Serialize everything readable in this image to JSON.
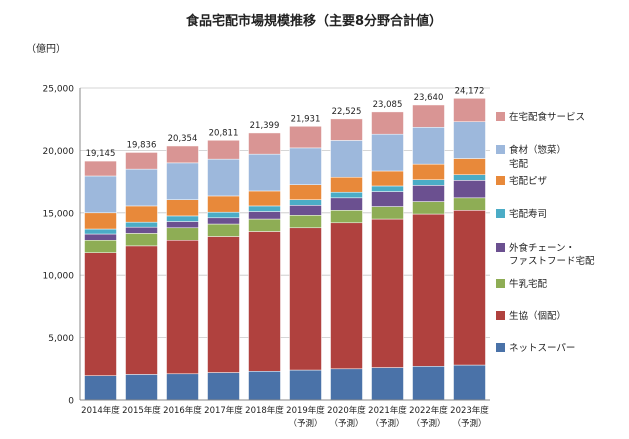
{
  "chart_data": {
    "type": "bar",
    "stacked": true,
    "title": "食品宅配市場規模推移（主要8分野合計値）",
    "unit_label": "（億円）",
    "ylim": [
      0,
      25000
    ],
    "yticks": [
      "0",
      "5,000",
      "10,000",
      "15,000",
      "20,000",
      "25,000"
    ],
    "ytick_values": [
      0,
      5000,
      10000,
      15000,
      20000,
      25000
    ],
    "grid": true,
    "legend_position": "right",
    "categories": [
      "2014年度",
      "2015年度",
      "2016年度",
      "2017年度",
      "2018年度",
      "2019年度",
      "2020年度",
      "2021年度",
      "2022年度",
      "2023年度"
    ],
    "category_notes": [
      "",
      "",
      "",
      "",
      "",
      "（予測）",
      "（予測）",
      "（予測）",
      "（予測）",
      "（予測）"
    ],
    "totals": [
      19145,
      19836,
      20354,
      20811,
      21399,
      21931,
      22525,
      23085,
      23640,
      24172
    ],
    "total_labels": [
      "19,145",
      "19,836",
      "20,354",
      "20,811",
      "21,399",
      "21,931",
      "22,525",
      "23,085",
      "23,640",
      "24,172"
    ],
    "series": [
      {
        "name": "ネットスーパー",
        "color": "#4a72a8",
        "values": [
          1950,
          2050,
          2100,
          2200,
          2300,
          2400,
          2500,
          2600,
          2700,
          2800
        ]
      },
      {
        "name": "生協（個配）",
        "color": "#b0413e",
        "values": [
          9850,
          10300,
          10700,
          10900,
          11200,
          11400,
          11700,
          11900,
          12200,
          12400
        ]
      },
      {
        "name": "牛乳宅配",
        "color": "#8ead55",
        "values": [
          1000,
          1000,
          1000,
          1000,
          1000,
          1000,
          1000,
          1000,
          1000,
          1000
        ]
      },
      {
        "name": "外食チェーン・ファストフード宅配",
        "color": "#6b5090",
        "values": [
          500,
          500,
          500,
          500,
          600,
          800,
          1000,
          1200,
          1300,
          1400
        ]
      },
      {
        "name": "宅配寿司",
        "color": "#4bacc6",
        "values": [
          400,
          400,
          450,
          450,
          450,
          450,
          450,
          450,
          450,
          450
        ]
      },
      {
        "name": "宅配ピザ",
        "color": "#e8893a",
        "values": [
          1300,
          1300,
          1300,
          1300,
          1200,
          1200,
          1200,
          1200,
          1250,
          1300
        ]
      },
      {
        "name": "食材（惣菜）",
        "color": "#9db8dc",
        "values": [
          2950,
          2950,
          2950,
          2950,
          2950,
          2950,
          2950,
          2950,
          2950,
          2950
        ]
      },
      {
        "name": "在宅配食サービス",
        "color": "#d99594",
        "values": [
          1195,
          1336,
          1354,
          1511,
          1699,
          1731,
          1725,
          1785,
          1790,
          1872
        ]
      }
    ],
    "legend_labels": [
      {
        "series": 7,
        "lines": [
          "在宅配食サービス"
        ]
      },
      {
        "series": 6,
        "lines": [
          "食材（惣菜）"
        ]
      },
      {
        "series": -1,
        "lines": [
          "宅配"
        ]
      },
      {
        "series": 5,
        "lines": [
          "宅配ピザ"
        ]
      },
      {
        "series": 4,
        "lines": [
          "宅配寿司"
        ]
      },
      {
        "series": 3,
        "lines": [
          "外食チェーン・",
          "ファストフード宅配"
        ]
      },
      {
        "series": 2,
        "lines": [
          "牛乳宅配"
        ]
      },
      {
        "series": 1,
        "lines": [
          "生協（個配）"
        ]
      },
      {
        "series": 0,
        "lines": [
          "ネットスーパー"
        ]
      }
    ]
  }
}
